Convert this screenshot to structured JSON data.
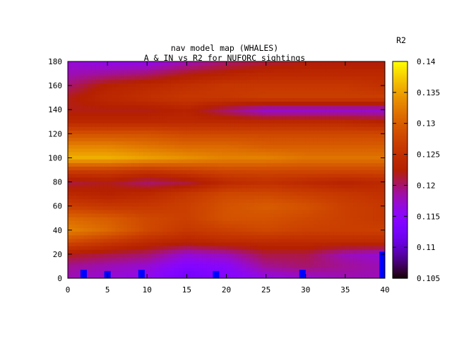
{
  "chart_data": {
    "type": "heatmap",
    "title": "nav model map (WHALES)",
    "subtitle": "A & IN vs R2 for NUFORC sightings",
    "xlabel": "",
    "ylabel": "",
    "colorbar_label": "R2",
    "xlim": [
      0,
      40
    ],
    "ylim": [
      0,
      180
    ],
    "x_ticks": [
      0,
      5,
      10,
      15,
      20,
      25,
      30,
      35,
      40
    ],
    "y_ticks": [
      0,
      20,
      40,
      60,
      80,
      100,
      120,
      140,
      160,
      180
    ],
    "colorbar_range": [
      0.105,
      0.14
    ],
    "colorbar_ticks": [
      "0.105",
      "0.11",
      "0.115",
      "0.12",
      "0.125",
      "0.13",
      "0.135",
      "0.14"
    ],
    "colormap": "gnuplot (black-purple-red-orange-yellow)",
    "grid": false,
    "y_axis_values": [
      0,
      10,
      20,
      30,
      40,
      50,
      60,
      70,
      80,
      90,
      100,
      110,
      120,
      130,
      140,
      150,
      160,
      170,
      180
    ],
    "x_axis_values": [
      0,
      5,
      10,
      15,
      20,
      25,
      30,
      35,
      40
    ],
    "r2_grid": [
      [
        0.118,
        0.117,
        0.116,
        0.112,
        0.114,
        0.116,
        0.117,
        0.118,
        0.118
      ],
      [
        0.119,
        0.118,
        0.117,
        0.114,
        0.115,
        0.119,
        0.12,
        0.119,
        0.118
      ],
      [
        0.122,
        0.121,
        0.12,
        0.117,
        0.118,
        0.121,
        0.121,
        0.118,
        0.117
      ],
      [
        0.128,
        0.126,
        0.124,
        0.123,
        0.124,
        0.124,
        0.124,
        0.124,
        0.124
      ],
      [
        0.133,
        0.131,
        0.128,
        0.126,
        0.127,
        0.128,
        0.127,
        0.127,
        0.127
      ],
      [
        0.131,
        0.13,
        0.128,
        0.127,
        0.129,
        0.129,
        0.128,
        0.127,
        0.126
      ],
      [
        0.127,
        0.126,
        0.126,
        0.127,
        0.129,
        0.13,
        0.129,
        0.127,
        0.126
      ],
      [
        0.124,
        0.123,
        0.124,
        0.126,
        0.128,
        0.128,
        0.127,
        0.126,
        0.125
      ],
      [
        0.121,
        0.122,
        0.12,
        0.121,
        0.124,
        0.125,
        0.124,
        0.123,
        0.124
      ],
      [
        0.127,
        0.127,
        0.126,
        0.127,
        0.128,
        0.128,
        0.128,
        0.128,
        0.128
      ],
      [
        0.136,
        0.136,
        0.135,
        0.134,
        0.133,
        0.133,
        0.132,
        0.132,
        0.132
      ],
      [
        0.133,
        0.133,
        0.132,
        0.131,
        0.131,
        0.13,
        0.13,
        0.13,
        0.13
      ],
      [
        0.129,
        0.129,
        0.129,
        0.128,
        0.128,
        0.128,
        0.128,
        0.128,
        0.128
      ],
      [
        0.124,
        0.124,
        0.124,
        0.124,
        0.124,
        0.124,
        0.124,
        0.124,
        0.123
      ],
      [
        0.122,
        0.122,
        0.122,
        0.123,
        0.12,
        0.117,
        0.117,
        0.117,
        0.117
      ],
      [
        0.122,
        0.124,
        0.125,
        0.126,
        0.126,
        0.127,
        0.127,
        0.127,
        0.127
      ],
      [
        0.12,
        0.123,
        0.124,
        0.125,
        0.126,
        0.126,
        0.126,
        0.126,
        0.125
      ],
      [
        0.118,
        0.119,
        0.12,
        0.122,
        0.123,
        0.124,
        0.124,
        0.124,
        0.124
      ],
      [
        0.117,
        0.116,
        0.116,
        0.118,
        0.12,
        0.121,
        0.122,
        0.122,
        0.122
      ]
    ],
    "markers": [
      {
        "x": 2,
        "y": 7
      },
      {
        "x": 5,
        "y": 6
      },
      {
        "x": 9.3,
        "y": 7
      },
      {
        "x": 18.7,
        "y": 6
      },
      {
        "x": 29.6,
        "y": 7
      },
      {
        "x": 39.7,
        "y": 22
      }
    ],
    "colors": {
      "marker": "#0000ff",
      "axis": "#000000",
      "background": "#ffffff"
    }
  }
}
